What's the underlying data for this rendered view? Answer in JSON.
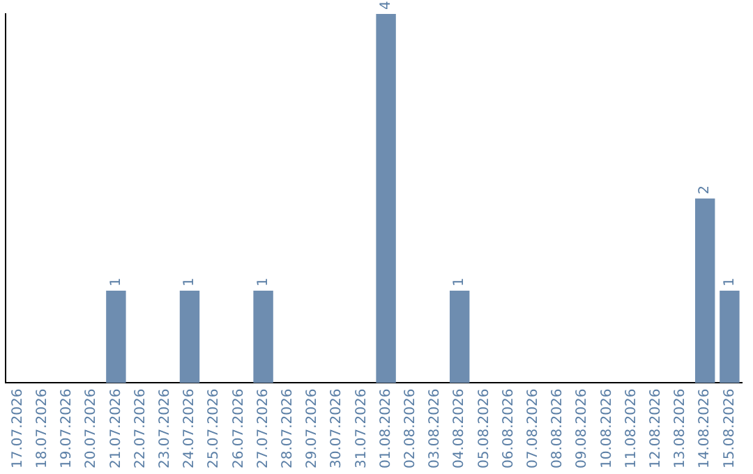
{
  "chart_data": {
    "type": "bar",
    "categories": [
      "17.07.2026",
      "18.07.2026",
      "19.07.2026",
      "20.07.2026",
      "21.07.2026",
      "22.07.2026",
      "23.07.2026",
      "24.07.2026",
      "25.07.2026",
      "26.07.2026",
      "27.07.2026",
      "28.07.2026",
      "29.07.2026",
      "30.07.2026",
      "31.07.2026",
      "01.08.2026",
      "02.08.2026",
      "03.08.2026",
      "04.08.2026",
      "05.08.2026",
      "06.08.2026",
      "07.08.2026",
      "08.08.2026",
      "09.08.2026",
      "10.08.2026",
      "11.08.2026",
      "12.08.2026",
      "13.08.2026",
      "14.08.2026",
      "15.08.2026"
    ],
    "values": [
      0,
      0,
      0,
      0,
      1,
      0,
      0,
      1,
      0,
      0,
      1,
      0,
      0,
      0,
      0,
      4,
      0,
      0,
      1,
      0,
      0,
      0,
      0,
      0,
      0,
      0,
      0,
      0,
      2,
      1
    ],
    "value_labels": [
      null,
      null,
      null,
      null,
      "1",
      null,
      null,
      "1",
      null,
      null,
      "1",
      null,
      null,
      null,
      null,
      "4",
      null,
      null,
      "1",
      null,
      null,
      null,
      null,
      null,
      null,
      null,
      null,
      null,
      "2",
      "1"
    ],
    "color": "#6e8db0",
    "grid": false,
    "legend": false,
    "tick_labels": "x"
  }
}
